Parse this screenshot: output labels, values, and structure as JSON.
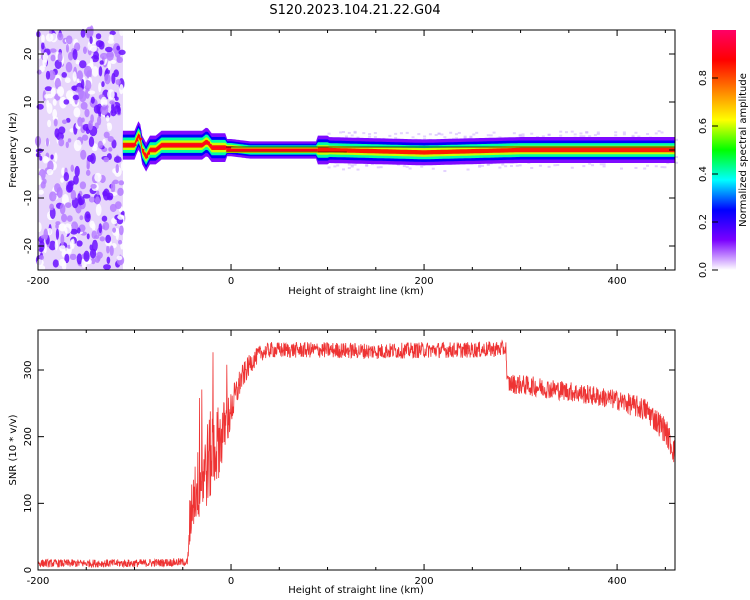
{
  "title": "S120.2023.104.21.22.G04",
  "chart_data": [
    {
      "type": "heatmap",
      "xlabel": "Height of straight line (km)",
      "ylabel": "Frequency (Hz)",
      "xlim": [
        -200,
        460
      ],
      "ylim": [
        -25,
        25
      ],
      "xticks": [
        -200,
        0,
        200,
        400
      ],
      "yticks": [
        -20,
        -10,
        0,
        10,
        20
      ],
      "xtick_labels": [
        "-200",
        "0",
        "200",
        "400"
      ],
      "ytick_labels": [
        "-20",
        "-10",
        "0",
        "10",
        "20"
      ],
      "colorbar": {
        "label": "Normalized spectral amplitude",
        "range": [
          0,
          1
        ],
        "ticks": [
          0.0,
          0.2,
          0.4,
          0.6,
          0.8
        ],
        "tick_labels": [
          "0.0",
          "0.2",
          "0.4",
          "0.6",
          "0.8"
        ],
        "colormap": [
          "#ffffff",
          "#7a00ff",
          "#0000ff",
          "#00ffff",
          "#00ff00",
          "#ffff00",
          "#ff8000",
          "#ff0000",
          "#ff0066"
        ]
      },
      "features": {
        "noise_region_x": [
          -200,
          -112
        ],
        "signal_start_x": -112,
        "line_ridge_x": [
          -5,
          90
        ],
        "line_ridge_freq": 0,
        "ridge_path": [
          [
            -112,
            1.0
          ],
          [
            -100,
            1.0
          ],
          [
            -95,
            3.5
          ],
          [
            -92,
            0.0
          ],
          [
            -88,
            -1.5
          ],
          [
            -84,
            0.0
          ],
          [
            -78,
            0.0
          ],
          [
            -72,
            1.0
          ],
          [
            -40,
            1.0
          ],
          [
            -30,
            1.0
          ],
          [
            -25,
            1.8
          ],
          [
            -20,
            0.5
          ],
          [
            -10,
            0.5
          ],
          [
            0,
            0.5
          ],
          [
            20,
            0.0
          ],
          [
            100,
            0.0
          ],
          [
            200,
            -0.5
          ],
          [
            300,
            0.0
          ],
          [
            460,
            0.0
          ]
        ]
      }
    },
    {
      "type": "line",
      "color": "#ee3333",
      "xlabel": "Height of straight line (km)",
      "ylabel": "SNR (10 * v/v)",
      "xlim": [
        -200,
        460
      ],
      "ylim": [
        0,
        360
      ],
      "xticks": [
        -200,
        0,
        200,
        400
      ],
      "yticks": [
        0,
        100,
        200,
        300
      ],
      "xtick_labels": [
        "-200",
        "0",
        "200",
        "400"
      ],
      "ytick_labels": [
        "0",
        "100",
        "200",
        "300"
      ],
      "series": [
        {
          "x": [
            -200,
            -100,
            -45,
            -42,
            -40,
            -30,
            -20,
            -10,
            0,
            10,
            20,
            30,
            40,
            100,
            150,
            200,
            250,
            285,
            286,
            300,
            350,
            400,
            430,
            450,
            460
          ],
          "y": [
            10,
            10,
            12,
            70,
            110,
            140,
            175,
            200,
            240,
            285,
            310,
            325,
            330,
            330,
            328,
            330,
            330,
            332,
            280,
            278,
            268,
            255,
            240,
            210,
            175
          ],
          "noise": [
            6,
            6,
            6,
            30,
            50,
            60,
            70,
            50,
            30,
            20,
            15,
            12,
            12,
            12,
            12,
            12,
            12,
            12,
            15,
            15,
            15,
            15,
            18,
            20,
            20
          ]
        }
      ]
    }
  ]
}
